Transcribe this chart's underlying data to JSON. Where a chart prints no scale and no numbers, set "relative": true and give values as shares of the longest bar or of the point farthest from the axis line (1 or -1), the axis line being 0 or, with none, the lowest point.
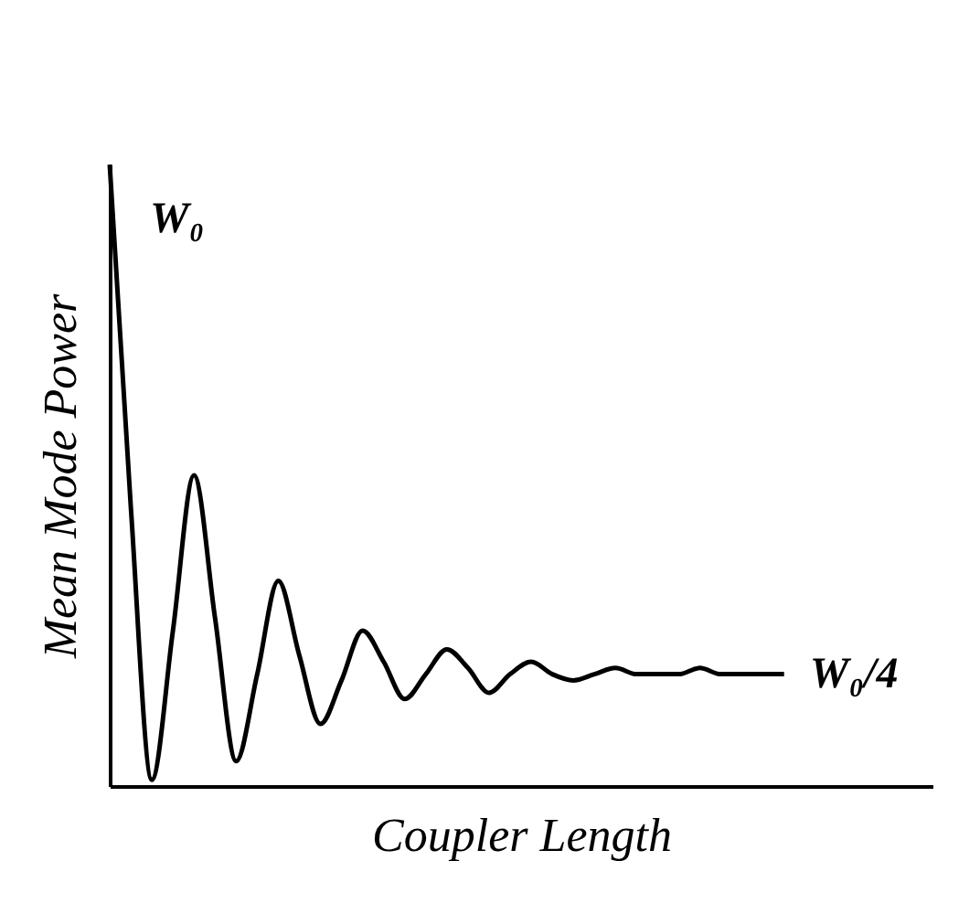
{
  "chart_data": {
    "type": "line",
    "relative": true,
    "xlabel": "Coupler Length",
    "ylabel": "Mean Mode Power",
    "categories": [
      null,
      null,
      null,
      null,
      null,
      null,
      null,
      null,
      null,
      null,
      null,
      null,
      null,
      null,
      null,
      null,
      null,
      null,
      null,
      null,
      null,
      null,
      null,
      null,
      null,
      null,
      null,
      null,
      null,
      null,
      null,
      null,
      null
    ],
    "series": [
      {
        "color": "#000000",
        "values": [
          1.0,
          0.45,
          0.01,
          0.25,
          0.5,
          0.27,
          0.04,
          0.18,
          0.33,
          0.21,
          0.1,
          0.17,
          0.25,
          0.2,
          0.14,
          0.18,
          0.22,
          0.19,
          0.15,
          0.18,
          0.2,
          0.18,
          0.17,
          0.18,
          0.19,
          0.18,
          0.18,
          0.18,
          0.19,
          0.18,
          0.18,
          0.18,
          0.18
        ]
      }
    ],
    "annotations": [
      "W₀",
      "W₀/4"
    ],
    "grid": false,
    "legend": false
  }
}
